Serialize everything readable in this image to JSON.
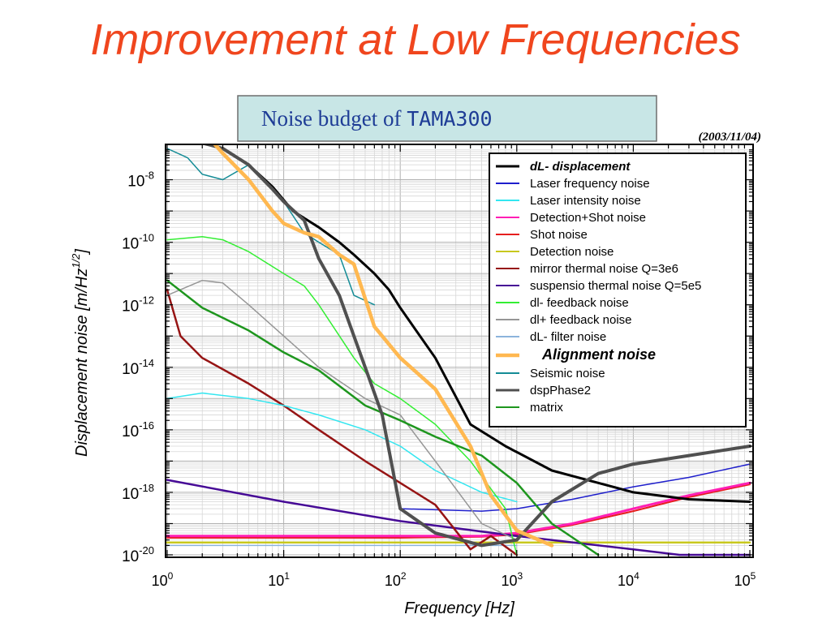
{
  "slide": {
    "title": "Improvement at Low Frequencies"
  },
  "banner": {
    "text_prefix": "Noise budget of ",
    "text_name": "TAMA300",
    "date": "(2003/11/04)"
  },
  "colors": {
    "title": "#f0461e",
    "banner_fill": "#c8e6e6",
    "banner_text": "#1e3c96"
  },
  "chart_data": {
    "type": "line",
    "xscale": "log",
    "yscale": "log",
    "xlabel": "Frequency [Hz]",
    "ylabel": "Displacement noise [m/Hz",
    "ylabel_sup": "1/2",
    "ylabel_close": "]",
    "xlim": [
      1,
      100000
    ],
    "ylim": [
      1e-20,
      1e-07
    ],
    "grid": true,
    "legend_position": "top-right",
    "x_ticks": [
      {
        "base": "10",
        "exp": "0",
        "value": 1
      },
      {
        "base": "10",
        "exp": "1",
        "value": 10
      },
      {
        "base": "10",
        "exp": "2",
        "value": 100
      },
      {
        "base": "10",
        "exp": "3",
        "value": 1000
      },
      {
        "base": "10",
        "exp": "4",
        "value": 10000
      },
      {
        "base": "10",
        "exp": "5",
        "value": 100000
      }
    ],
    "y_ticks": [
      {
        "base": "10",
        "exp": "-8",
        "value": -8
      },
      {
        "base": "10",
        "exp": "-10",
        "value": -10
      },
      {
        "base": "10",
        "exp": "-12",
        "value": -12
      },
      {
        "base": "10",
        "exp": "-14",
        "value": -14
      },
      {
        "base": "10",
        "exp": "-16",
        "value": -16
      },
      {
        "base": "10",
        "exp": "-18",
        "value": -18
      },
      {
        "base": "10",
        "exp": "-20",
        "value": -20
      }
    ],
    "series": [
      {
        "name": "dL- displacement",
        "color": "#000000",
        "legend_style": "bold-italic",
        "points": [
          [
            1.4,
            2e-07
          ],
          [
            2,
            1.5e-07
          ],
          [
            3,
            1e-07
          ],
          [
            5,
            3e-08
          ],
          [
            8,
            6e-09
          ],
          [
            12,
            1e-09
          ],
          [
            20,
            3e-10
          ],
          [
            30,
            1e-10
          ],
          [
            40,
            4e-11
          ],
          [
            60,
            1e-11
          ],
          [
            80,
            3e-12
          ],
          [
            100,
            8e-13
          ],
          [
            200,
            2e-14
          ],
          [
            400,
            1.5e-16
          ],
          [
            800,
            3e-17
          ],
          [
            2000,
            5e-18
          ],
          [
            5000,
            2e-18
          ],
          [
            10000,
            1e-18
          ],
          [
            30000,
            6e-19
          ],
          [
            100000,
            5e-19
          ]
        ]
      },
      {
        "name": "Laser frequency noise",
        "color": "#1e1ecc",
        "points": [
          [
            100,
            3e-19
          ],
          [
            500,
            2.5e-19
          ],
          [
            1000,
            3e-19
          ],
          [
            3000,
            6e-19
          ],
          [
            10000,
            1.5e-18
          ],
          [
            30000,
            3e-18
          ],
          [
            100000,
            8e-18
          ]
        ]
      },
      {
        "name": "Laser intensity noise",
        "color": "#33e6f0",
        "points": [
          [
            1,
            1e-15
          ],
          [
            2,
            1.5e-15
          ],
          [
            5,
            1e-15
          ],
          [
            10,
            6e-16
          ],
          [
            20,
            3e-16
          ],
          [
            50,
            1e-16
          ],
          [
            100,
            3e-17
          ],
          [
            200,
            5e-18
          ],
          [
            500,
            1e-18
          ],
          [
            1000,
            5e-19
          ]
        ]
      },
      {
        "name": "Detection+Shot noise",
        "color": "#ff1eb4",
        "points": [
          [
            1,
            4e-20
          ],
          [
            10,
            4e-20
          ],
          [
            100,
            4e-20
          ],
          [
            500,
            4e-20
          ],
          [
            1000,
            5e-20
          ],
          [
            3000,
            1e-19
          ],
          [
            10000,
            3e-19
          ],
          [
            30000,
            8e-19
          ],
          [
            100000,
            2e-18
          ]
        ]
      },
      {
        "name": "Shot noise",
        "color": "#e61e1e",
        "points": [
          [
            1,
            3.5e-20
          ],
          [
            10,
            3.5e-20
          ],
          [
            100,
            3.5e-20
          ],
          [
            500,
            3.8e-20
          ],
          [
            1000,
            4.5e-20
          ],
          [
            3000,
            9e-20
          ],
          [
            10000,
            2.5e-19
          ],
          [
            30000,
            7e-19
          ],
          [
            100000,
            1.8e-18
          ]
        ]
      },
      {
        "name": "Detection noise",
        "color": "#c8c81e",
        "points": [
          [
            1,
            2.5e-20
          ],
          [
            10,
            2.5e-20
          ],
          [
            100,
            2.5e-20
          ],
          [
            1000,
            2.5e-20
          ],
          [
            10000,
            2.5e-20
          ],
          [
            100000,
            2.5e-20
          ]
        ]
      },
      {
        "name": "mirror thermal noise Q=3e6",
        "color": "#961414",
        "points": [
          [
            1,
            3e-12
          ],
          [
            1.3,
            1e-13
          ],
          [
            2,
            2e-14
          ],
          [
            5,
            3e-15
          ],
          [
            10,
            6e-16
          ],
          [
            20,
            1e-16
          ],
          [
            50,
            1e-17
          ],
          [
            100,
            2e-18
          ],
          [
            200,
            4e-19
          ],
          [
            400,
            1.5e-20
          ],
          [
            600,
            4e-20
          ],
          [
            1000,
            1e-20
          ]
        ]
      },
      {
        "name": "suspensio thermal noise Q=5e5",
        "color": "#460a96",
        "points": [
          [
            1,
            2.5e-18
          ],
          [
            10,
            5e-19
          ],
          [
            100,
            1.2e-19
          ],
          [
            1000,
            4e-20
          ],
          [
            10000,
            1.5e-20
          ],
          [
            25000,
            1e-20
          ],
          [
            100000,
            1e-20
          ]
        ]
      },
      {
        "name": "dl- feedback noise",
        "color": "#33ee33",
        "points": [
          [
            1,
            1.2e-10
          ],
          [
            2,
            1.5e-10
          ],
          [
            3,
            1.2e-10
          ],
          [
            5,
            5e-11
          ],
          [
            10,
            1e-11
          ],
          [
            15,
            4e-12
          ],
          [
            20,
            1e-12
          ],
          [
            40,
            2e-14
          ],
          [
            60,
            3e-15
          ],
          [
            100,
            1e-15
          ],
          [
            200,
            1.5e-16
          ],
          [
            400,
            1e-17
          ],
          [
            800,
            3e-19
          ],
          [
            1000,
            1e-20
          ]
        ]
      },
      {
        "name": "dl+ feedback noise",
        "color": "#969696",
        "points": [
          [
            1,
            2e-12
          ],
          [
            2,
            6e-12
          ],
          [
            3,
            5e-12
          ],
          [
            5,
            1e-12
          ],
          [
            10,
            1e-13
          ],
          [
            20,
            1e-14
          ],
          [
            50,
            1e-15
          ],
          [
            100,
            3e-16
          ],
          [
            200,
            1e-17
          ],
          [
            500,
            1e-19
          ],
          [
            1000,
            3e-20
          ]
        ]
      },
      {
        "name": "dL- filter noise",
        "color": "#8cb4dc",
        "points": [
          [
            1,
            2e-20
          ],
          [
            100,
            2e-20
          ],
          [
            1000,
            2e-20
          ]
        ]
      },
      {
        "name": "Alignment noise",
        "color": "#ffb850",
        "legend_style": "bold-italic",
        "points": [
          [
            2.5,
            1.5e-07
          ],
          [
            3,
            7e-08
          ],
          [
            5,
            1e-08
          ],
          [
            8,
            1e-09
          ],
          [
            10,
            4e-10
          ],
          [
            15,
            2e-10
          ],
          [
            20,
            1.5e-10
          ],
          [
            30,
            4e-11
          ],
          [
            40,
            2e-11
          ],
          [
            60,
            2e-13
          ],
          [
            100,
            2e-14
          ],
          [
            200,
            2e-15
          ],
          [
            400,
            3e-17
          ],
          [
            600,
            8e-19
          ],
          [
            1000,
            6e-20
          ],
          [
            2000,
            2e-20
          ]
        ]
      },
      {
        "name": "Seismic noise",
        "color": "#148c96",
        "points": [
          [
            1,
            1e-07
          ],
          [
            1.5,
            5e-08
          ],
          [
            2,
            1.5e-08
          ],
          [
            3,
            1e-08
          ],
          [
            5,
            3e-08
          ],
          [
            8,
            6e-09
          ],
          [
            10,
            2e-09
          ],
          [
            15,
            2e-10
          ],
          [
            20,
            1e-10
          ],
          [
            30,
            4e-11
          ],
          [
            40,
            2e-12
          ],
          [
            60,
            1e-12
          ]
        ]
      },
      {
        "name": "dspPhase2",
        "color": "#505050",
        "points": [
          [
            1.5,
            2e-07
          ],
          [
            2,
            1.5e-07
          ],
          [
            3,
            1e-07
          ],
          [
            5,
            3e-08
          ],
          [
            8,
            5e-09
          ],
          [
            10,
            2e-09
          ],
          [
            15,
            5e-10
          ],
          [
            20,
            3e-11
          ],
          [
            30,
            2e-12
          ],
          [
            50,
            1e-14
          ],
          [
            70,
            3e-16
          ],
          [
            100,
            3e-19
          ],
          [
            200,
            5e-20
          ],
          [
            500,
            2e-20
          ],
          [
            1000,
            3e-20
          ],
          [
            2000,
            5e-19
          ],
          [
            5000,
            4e-18
          ],
          [
            10000,
            8e-18
          ],
          [
            30000,
            1.5e-17
          ],
          [
            100000,
            3e-17
          ]
        ]
      },
      {
        "name": "matrix",
        "color": "#1e961e",
        "points": [
          [
            1,
            6e-12
          ],
          [
            2,
            8e-13
          ],
          [
            5,
            1.5e-13
          ],
          [
            10,
            3e-14
          ],
          [
            20,
            8e-15
          ],
          [
            50,
            6e-16
          ],
          [
            100,
            2e-16
          ],
          [
            200,
            6e-17
          ],
          [
            500,
            1.5e-17
          ],
          [
            1000,
            2e-18
          ],
          [
            2000,
            1e-19
          ],
          [
            5000,
            1e-20
          ]
        ]
      }
    ]
  }
}
